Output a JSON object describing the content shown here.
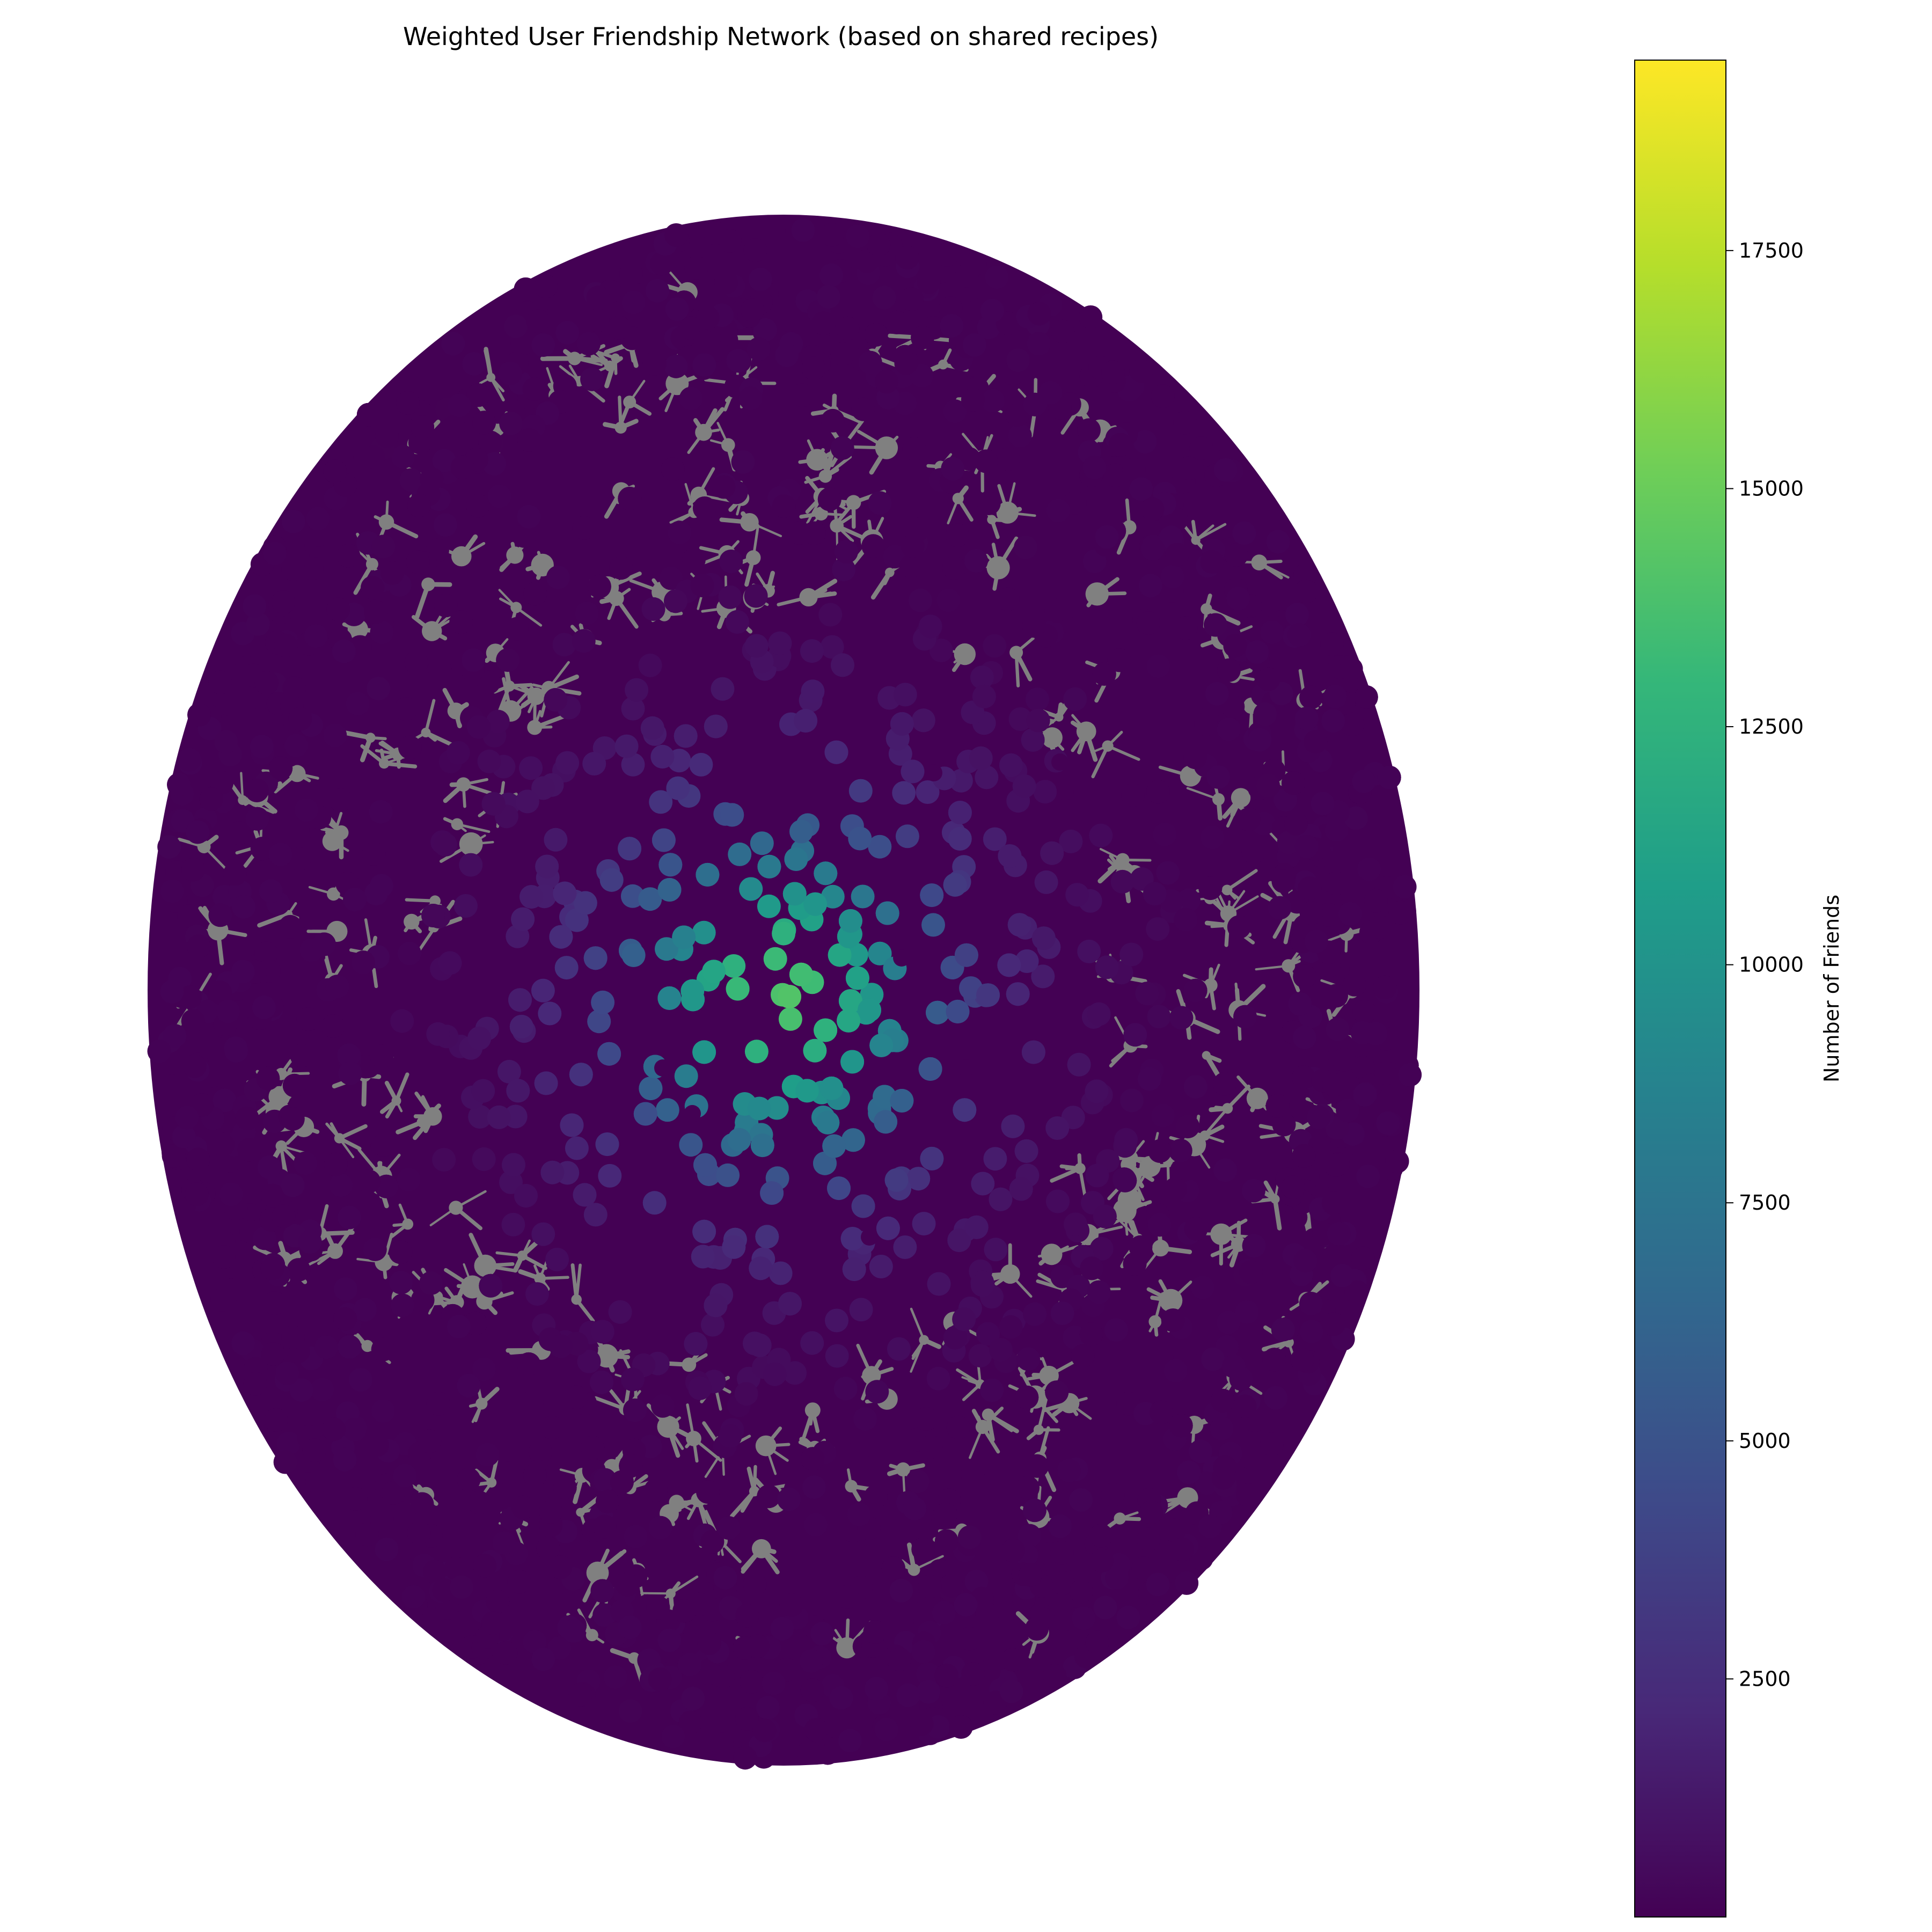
{
  "chart_data": {
    "type": "scatter",
    "title": "Weighted User Friendship Network (based on shared recipes)",
    "axes_visible": false,
    "grid": false,
    "node_color": "degree",
    "edge_color": "#808080",
    "colormap": "viridis",
    "colorbar": {
      "label": "Number of Friends",
      "placement": "right",
      "range": [
        0,
        19500
      ],
      "ticks": [
        2500,
        5000,
        7500,
        10000,
        12500,
        15000,
        17500
      ],
      "tick_labels": [
        "2500",
        "5000",
        "7500",
        "10000",
        "12500",
        "15000",
        "17500"
      ]
    },
    "colors": {
      "viridis_stops": [
        "#440154",
        "#482878",
        "#3e4989",
        "#31688e",
        "#26828e",
        "#1f9e89",
        "#35b779",
        "#6ece58",
        "#b5de2b",
        "#fde725"
      ]
    }
  }
}
